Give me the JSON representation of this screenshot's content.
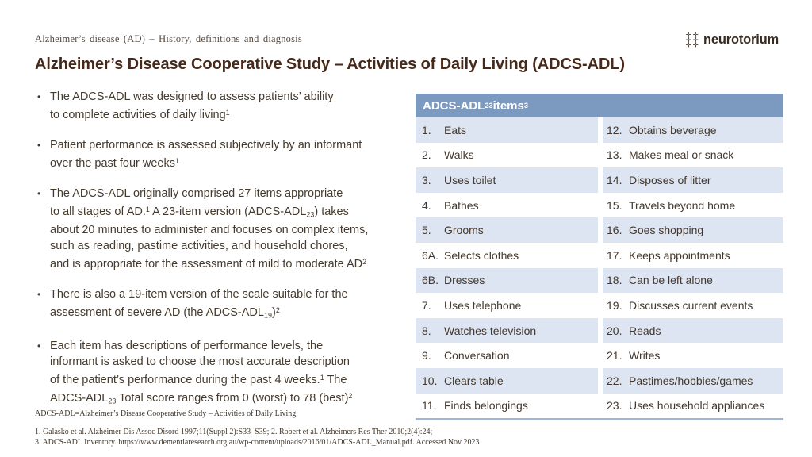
{
  "header": {
    "eyebrow": "Alzheimer’s disease (AD) – History, definitions and diagnosis",
    "title": "Alzheimer’s Disease Cooperative Study – Activities of Daily Living (ADCS-ADL)",
    "logo_text": "neurotorium",
    "logo_icon": "brain-icon"
  },
  "colors": {
    "title_text": "#47291a",
    "body_text": "#453a2e",
    "table_header_bg": "#7c9ac0",
    "table_header_text": "#ffffff",
    "table_stripe": "#dce5f1",
    "table_bottom_border": "#9eb6d5"
  },
  "bullets": [
    {
      "lines": [
        [
          {
            "t": "The ADCS-ADL was designed to assess patients’ ability"
          }
        ],
        [
          {
            "t": "to complete activities of daily living"
          },
          {
            "t": "1",
            "s": "sup"
          }
        ]
      ]
    },
    {
      "lines": [
        [
          {
            "t": "Patient performance is assessed subjectively by an informant"
          }
        ],
        [
          {
            "t": "over the past four weeks"
          },
          {
            "t": "1",
            "s": "sup"
          }
        ]
      ]
    },
    {
      "lines": [
        [
          {
            "t": "The ADCS-ADL originally comprised 27 items appropriate"
          }
        ],
        [
          {
            "t": "to all stages of AD."
          },
          {
            "t": "1",
            "s": "sup"
          },
          {
            "t": " A 23-item version (ADCS-ADL"
          },
          {
            "t": "23",
            "s": "sub"
          },
          {
            "t": ") takes"
          }
        ],
        [
          {
            "t": "about 20 minutes to administer and focuses on complex items,"
          }
        ],
        [
          {
            "t": "such as reading, pastime activities, and household chores,"
          }
        ],
        [
          {
            "t": "and is appropriate for the assessment of mild to moderate AD"
          },
          {
            "t": "2",
            "s": "sup"
          }
        ]
      ]
    },
    {
      "lines": [
        [
          {
            "t": "There is also a 19-item version of the scale suitable for the"
          }
        ],
        [
          {
            "t": "assessment of severe AD (the ADCS-ADL"
          },
          {
            "t": "19",
            "s": "sub"
          },
          {
            "t": ")"
          },
          {
            "t": "2",
            "s": "sup"
          }
        ]
      ]
    },
    {
      "lines": [
        [
          {
            "t": "Each item has descriptions of performance levels, the"
          }
        ],
        [
          {
            "t": "informant is asked to choose the most accurate description"
          }
        ],
        [
          {
            "t": "of the patient’s performance during the past 4 weeks."
          },
          {
            "t": "1",
            "s": "sup"
          },
          {
            "t": " The"
          }
        ],
        [
          {
            "t": "ADCS-ADL"
          },
          {
            "t": "23",
            "s": "sub"
          },
          {
            "t": " Total score ranges from 0 (worst) to 78 (best)"
          },
          {
            "t": "2",
            "s": "sup"
          }
        ]
      ]
    }
  ],
  "table": {
    "header_segments": [
      {
        "t": "ADCS-ADL"
      },
      {
        "t": "23",
        "s": "sub"
      },
      {
        "t": " items"
      },
      {
        "t": "3",
        "s": "sup"
      }
    ],
    "rows": [
      {
        "l_num": "1.",
        "l_text": "Eats",
        "r_num": "12.",
        "r_text": "Obtains beverage"
      },
      {
        "l_num": "2.",
        "l_text": "Walks",
        "r_num": "13.",
        "r_text": "Makes meal or snack"
      },
      {
        "l_num": "3.",
        "l_text": "Uses toilet",
        "r_num": "14.",
        "r_text": "Disposes of litter"
      },
      {
        "l_num": "4.",
        "l_text": "Bathes",
        "r_num": "15.",
        "r_text": "Travels beyond home"
      },
      {
        "l_num": "5.",
        "l_text": "Grooms",
        "r_num": "16.",
        "r_text": "Goes shopping"
      },
      {
        "l_num": "6A.",
        "l_text": "Selects clothes",
        "r_num": "17.",
        "r_text": "Keeps appointments"
      },
      {
        "l_num": "6B.",
        "l_text": "Dresses",
        "r_num": "18.",
        "r_text": "Can be left alone"
      },
      {
        "l_num": "7.",
        "l_text": "Uses telephone",
        "r_num": "19.",
        "r_text": "Discusses current events"
      },
      {
        "l_num": "8.",
        "l_text": "Watches television",
        "r_num": "20.",
        "r_text": "Reads"
      },
      {
        "l_num": "9.",
        "l_text": "Conversation",
        "r_num": "21.",
        "r_text": "Writes"
      },
      {
        "l_num": "10.",
        "l_text": "Clears table",
        "r_num": "22.",
        "r_text": "Pastimes/hobbies/games"
      },
      {
        "l_num": "11.",
        "l_text": "Finds belongings",
        "r_num": "23.",
        "r_text": "Uses household appliances"
      }
    ]
  },
  "footnotes": {
    "abbreviation": "ADCS-ADL=Alzheimer’s Disease Cooperative Study – Activities of Daily Living",
    "references": [
      "1. Galasko et al. Alzheimer Dis Assoc Disord 1997;11(Suppl 2):S33–S39;  2. Robert et al. Alzheimers Res Ther 2010;2(4):24;",
      "3. ADCS-ADL Inventory. https://www.dementiaresearch.org.au/wp-content/uploads/2016/01/ADCS-ADL_Manual.pdf. Accessed Nov 2023"
    ]
  }
}
